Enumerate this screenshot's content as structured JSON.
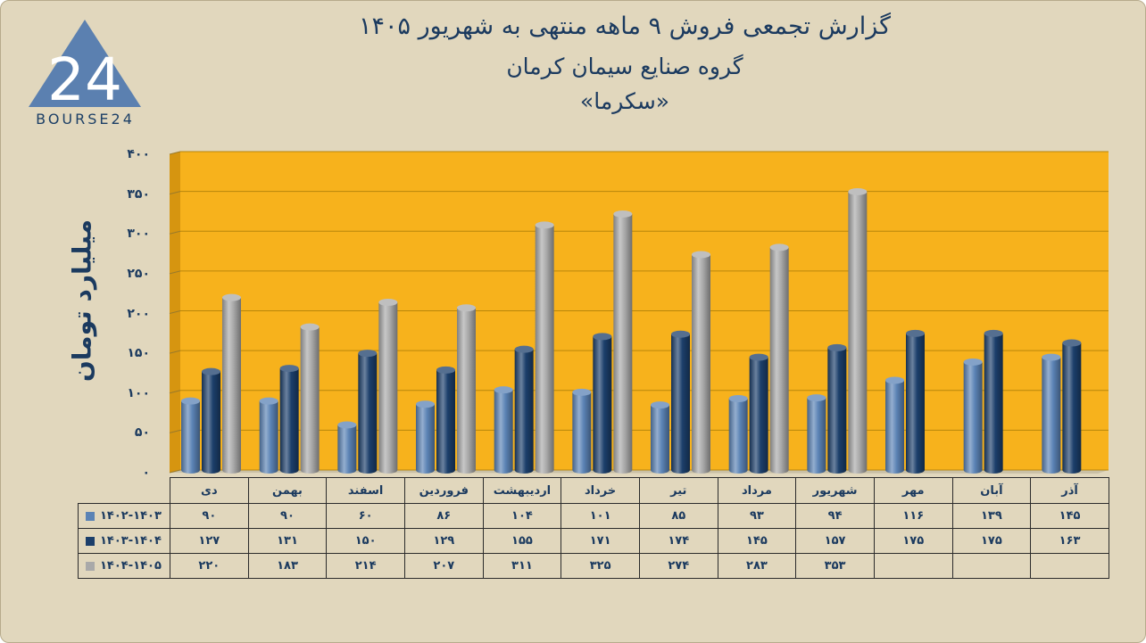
{
  "title_lines": [
    "گزارش تجمعی فروش ۹ ماهه منتهی به شهریور ۱۴۰۵",
    "گروه صنایع سیمان کرمان",
    "«سکرما»"
  ],
  "logo": {
    "text": "BOURSE24",
    "mark": "24"
  },
  "colors": {
    "background": "#e1d7bd",
    "plot_area": "#f7b21c",
    "series": [
      "#5b83b5",
      "#1c3f6b",
      "#a9a9a9"
    ]
  },
  "chart_data": {
    "type": "bar",
    "ylabel": "میلیارد تومان",
    "xlabel": "",
    "ylim": [
      0,
      400
    ],
    "y_ticks": [
      0,
      50,
      100,
      150,
      200,
      250,
      300,
      350,
      400
    ],
    "y_tick_labels": [
      "۰",
      "۵۰",
      "۱۰۰",
      "۱۵۰",
      "۲۰۰",
      "۲۵۰",
      "۳۰۰",
      "۳۵۰",
      "۴۰۰"
    ],
    "categories": [
      "دی",
      "بهمن",
      "اسفند",
      "فروردین",
      "اردیبهشت",
      "خرداد",
      "تیر",
      "مرداد",
      "شهریور",
      "مهر",
      "آبان",
      "آذر"
    ],
    "series": [
      {
        "name": "۱۴۰۲-۱۴۰۳",
        "values": [
          90,
          90,
          60,
          86,
          104,
          101,
          85,
          93,
          94,
          116,
          139,
          145
        ],
        "labels": [
          "۹۰",
          "۹۰",
          "۶۰",
          "۸۶",
          "۱۰۴",
          "۱۰۱",
          "۸۵",
          "۹۳",
          "۹۴",
          "۱۱۶",
          "۱۳۹",
          "۱۴۵"
        ]
      },
      {
        "name": "۱۴۰۳-۱۴۰۴",
        "values": [
          127,
          131,
          150,
          129,
          155,
          171,
          174,
          145,
          157,
          175,
          175,
          163
        ],
        "labels": [
          "۱۲۷",
          "۱۳۱",
          "۱۵۰",
          "۱۲۹",
          "۱۵۵",
          "۱۷۱",
          "۱۷۴",
          "۱۴۵",
          "۱۵۷",
          "۱۷۵",
          "۱۷۵",
          "۱۶۳"
        ]
      },
      {
        "name": "۱۴۰۴-۱۴۰۵",
        "values": [
          220,
          183,
          214,
          207,
          311,
          325,
          274,
          283,
          353,
          null,
          null,
          null
        ],
        "labels": [
          "۲۲۰",
          "۱۸۳",
          "۲۱۴",
          "۲۰۷",
          "۳۱۱",
          "۳۲۵",
          "۲۷۴",
          "۲۸۳",
          "۳۵۳",
          "",
          "",
          ""
        ]
      }
    ],
    "grid": true,
    "legend": "table"
  }
}
